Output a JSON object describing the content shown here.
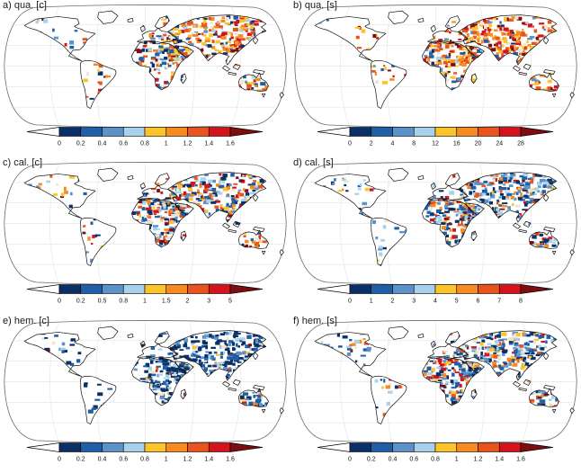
{
  "figure": {
    "background": "#ffffff",
    "map_style": {
      "projection": "robinson",
      "ocean_color": "#ffffff",
      "coastline_color": "#151515",
      "graticule_color": "#e4e4e4",
      "no_data_land_color": "#ffffff",
      "pale_patch_color": "#ece5d0"
    }
  },
  "colormap": {
    "segments": [
      "#0b3067",
      "#1f5fa8",
      "#5b92c9",
      "#a8d2ec",
      "#fdc32b",
      "#f68b22",
      "#e8541c",
      "#d6131a"
    ],
    "under_color": "#ffffff",
    "over_color": "#7f0d10"
  },
  "chart_data": [
    {
      "panel": "a",
      "title": "a) qua. [c]",
      "type": "heatmap",
      "subtype": "global-choropleth-map",
      "projection": "robinson",
      "colorbar_ticks": [
        "0",
        "0.2",
        "0.4",
        "0.6",
        "0.8",
        "1",
        "1.2",
        "1.4",
        "1.6"
      ],
      "colorbar_range": [
        0,
        1.6
      ],
      "description": "Mixed warm/cool mosaic; central Asia and Siberia strongly orange-red, Sahara mixed blue and orange, Americas sparse with scattered warm patches.",
      "regions": {
        "na": {
          "density": 0.3,
          "warm_fraction": 0.62
        },
        "sa": {
          "density": 0.35,
          "warm_fraction": 0.68
        },
        "eu": {
          "density": 0.55,
          "warm_fraction": 0.6
        },
        "af": {
          "density": 0.75,
          "warm_fraction": 0.52
        },
        "as": {
          "density": 0.85,
          "warm_fraction": 0.8
        },
        "au": {
          "density": 0.65,
          "warm_fraction": 0.45
        }
      }
    },
    {
      "panel": "b",
      "title": "b) qua. [s]",
      "type": "heatmap",
      "subtype": "global-choropleth-map",
      "projection": "robinson",
      "colorbar_ticks": [
        "0",
        "2",
        "4",
        "8",
        "12",
        "16",
        "20",
        "24",
        "28"
      ],
      "colorbar_range": [
        0,
        28
      ],
      "description": "Strongly warm everywhere; reds dominate Eurasia, Africa, western North America and Australia with scattered blue patches in the Sahel and central Asia.",
      "regions": {
        "na": {
          "density": 0.38,
          "warm_fraction": 0.72
        },
        "sa": {
          "density": 0.42,
          "warm_fraction": 0.78
        },
        "eu": {
          "density": 0.55,
          "warm_fraction": 0.78
        },
        "af": {
          "density": 0.85,
          "warm_fraction": 0.72
        },
        "as": {
          "density": 0.88,
          "warm_fraction": 0.85
        },
        "au": {
          "density": 0.7,
          "warm_fraction": 0.78
        }
      }
    },
    {
      "panel": "c",
      "title": "c) cal. [c]",
      "type": "heatmap",
      "subtype": "global-choropleth-map",
      "projection": "robinson",
      "colorbar_ticks": [
        "0",
        "0.2",
        "0.5",
        "0.8",
        "1",
        "1.5",
        "2",
        "3",
        "5"
      ],
      "colorbar_range": [
        0,
        5
      ],
      "description": "Blue over Siberia and high latitudes; orange-red belt over north Africa, Middle East and central Asia; Australia mixed blue and orange.",
      "regions": {
        "na": {
          "density": 0.35,
          "warm_fraction": 0.45
        },
        "sa": {
          "density": 0.32,
          "warm_fraction": 0.5
        },
        "eu": {
          "density": 0.55,
          "warm_fraction": 0.3
        },
        "af": {
          "density": 0.82,
          "warm_fraction": 0.5
        },
        "as": {
          "density": 0.88,
          "warm_fraction": 0.42
        },
        "au": {
          "density": 0.7,
          "warm_fraction": 0.6
        }
      }
    },
    {
      "panel": "d",
      "title": "d) cal. [s]",
      "type": "heatmap",
      "subtype": "global-choropleth-map",
      "projection": "robinson",
      "colorbar_ticks": [
        "0",
        "1",
        "2",
        "3",
        "4",
        "5",
        "6",
        "7",
        "8"
      ],
      "colorbar_range": [
        0,
        8
      ],
      "description": "Cool blues dominate; orange-red confined to a band from north Africa through the Middle East into central Asia and southern Australia.",
      "regions": {
        "na": {
          "density": 0.35,
          "warm_fraction": 0.18
        },
        "sa": {
          "density": 0.3,
          "warm_fraction": 0.18
        },
        "eu": {
          "density": 0.55,
          "warm_fraction": 0.22
        },
        "af": {
          "density": 0.82,
          "warm_fraction": 0.32
        },
        "as": {
          "density": 0.88,
          "warm_fraction": 0.28
        },
        "au": {
          "density": 0.7,
          "warm_fraction": 0.35
        }
      }
    },
    {
      "panel": "e",
      "title": "e) hem. [c]",
      "type": "heatmap",
      "subtype": "global-choropleth-map",
      "projection": "robinson",
      "colorbar_ticks": [
        "0",
        "0.2",
        "0.4",
        "0.6",
        "0.8",
        "1",
        "1.2",
        "1.4",
        "1.6"
      ],
      "colorbar_range": [
        0,
        1.6
      ],
      "description": "Dark navy blue almost everywhere; isolated red patches over east Africa, Myanmar and eastern Australia.",
      "regions": {
        "na": {
          "density": 0.42,
          "warm_fraction": 0.06
        },
        "sa": {
          "density": 0.35,
          "warm_fraction": 0.06
        },
        "eu": {
          "density": 0.55,
          "warm_fraction": 0.05
        },
        "af": {
          "density": 0.85,
          "warm_fraction": 0.08
        },
        "as": {
          "density": 0.88,
          "warm_fraction": 0.06
        },
        "au": {
          "density": 0.7,
          "warm_fraction": 0.28
        }
      }
    },
    {
      "panel": "f",
      "title": "f) hem. [s]",
      "type": "heatmap",
      "subtype": "global-choropleth-map",
      "projection": "robinson",
      "colorbar_ticks": [
        "0",
        "0.2",
        "0.4",
        "0.6",
        "0.8",
        "1",
        "1.2",
        "1.4",
        "1.6"
      ],
      "colorbar_range": [
        0,
        1.6
      ],
      "description": "Blues with moderate warm patches: orange over western US, southern Africa, Sahel margins and Australia; light blue across Siberia.",
      "regions": {
        "na": {
          "density": 0.42,
          "warm_fraction": 0.38
        },
        "sa": {
          "density": 0.35,
          "warm_fraction": 0.28
        },
        "eu": {
          "density": 0.55,
          "warm_fraction": 0.28
        },
        "af": {
          "density": 0.85,
          "warm_fraction": 0.45
        },
        "as": {
          "density": 0.85,
          "warm_fraction": 0.3
        },
        "au": {
          "density": 0.7,
          "warm_fraction": 0.52
        }
      }
    }
  ]
}
